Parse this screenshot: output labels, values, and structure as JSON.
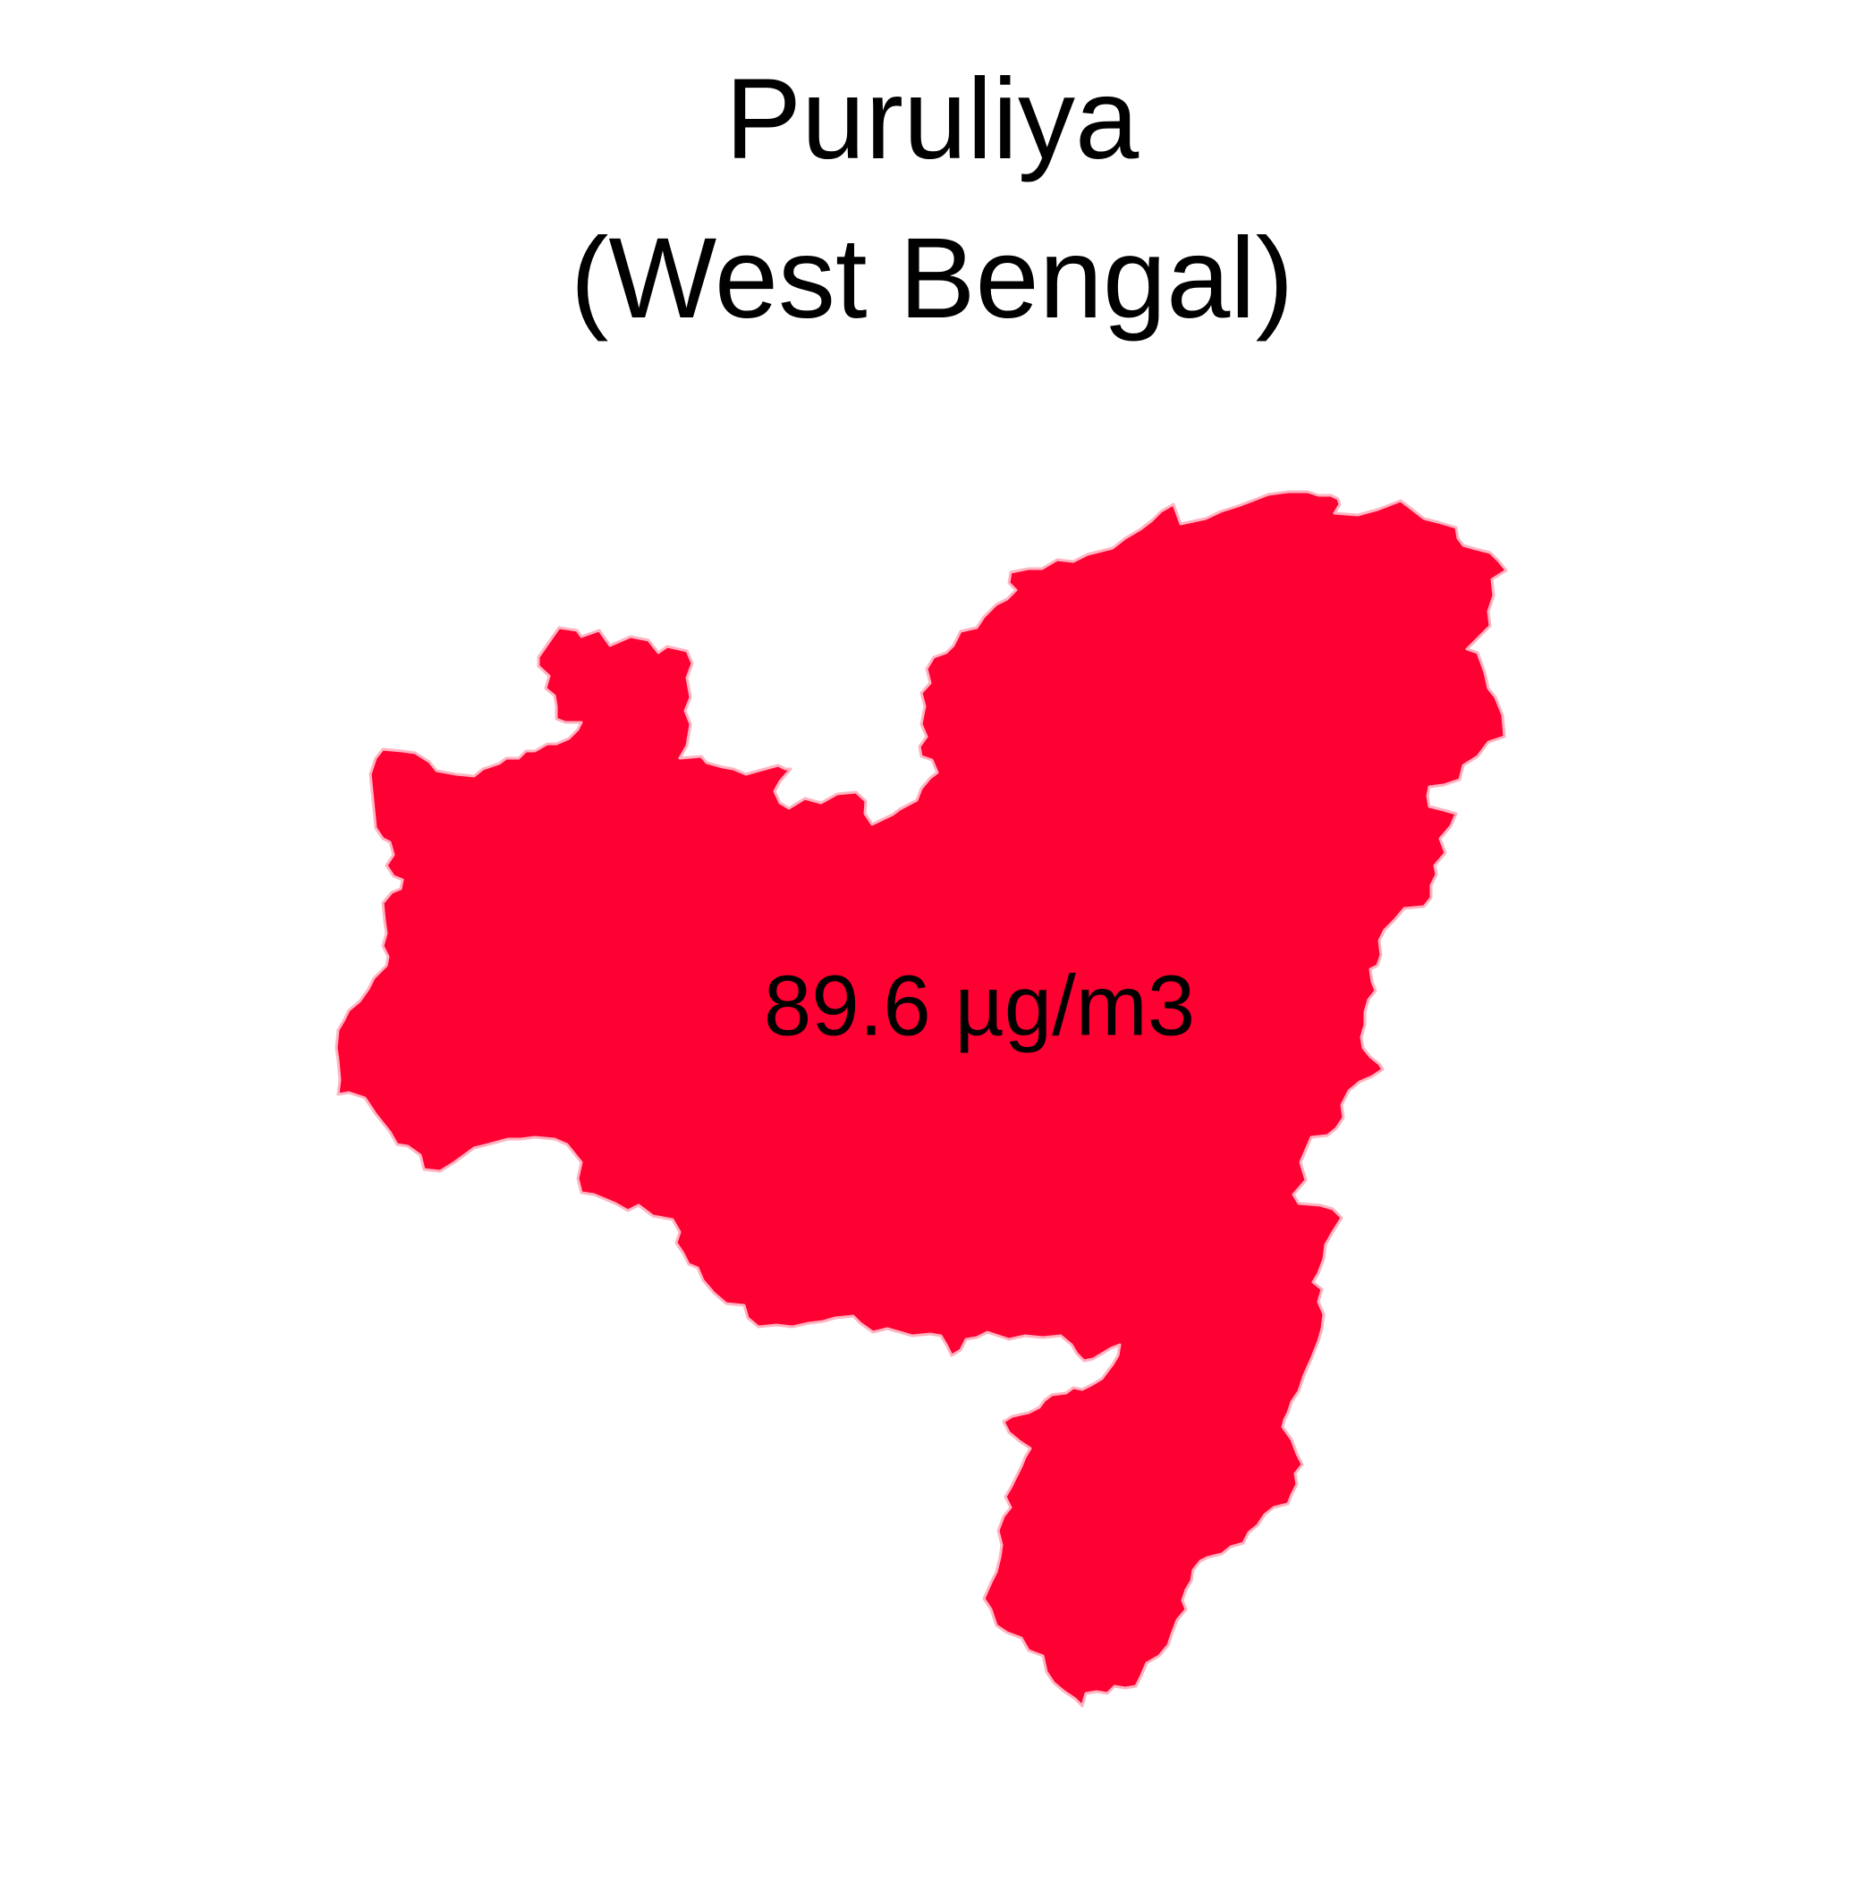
{
  "title": {
    "line1": "Puruliya",
    "line2": "(West Bengal)"
  },
  "map": {
    "region_name": "Puruliya",
    "value_label": "89.6 µg/m3",
    "fill_color": "#ff0033",
    "border_color": "#ffb3c0",
    "label_color": "#000000"
  }
}
